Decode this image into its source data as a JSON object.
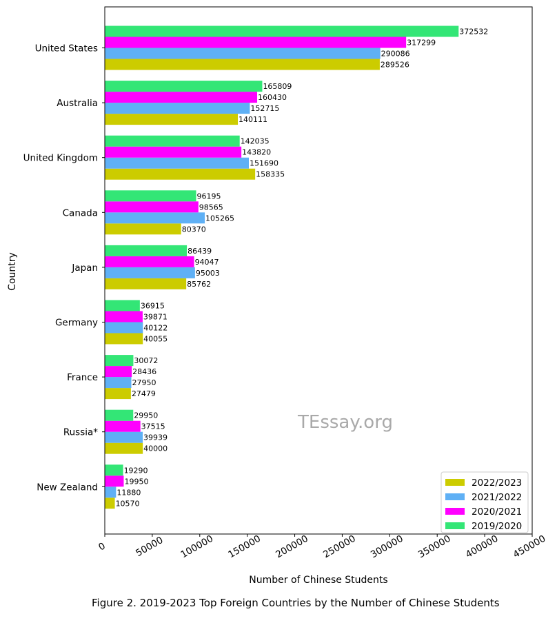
{
  "caption": "Figure 2. 2019-2023 Top Foreign Countries by the Number of Chinese Students",
  "chart_data": {
    "type": "bar",
    "orientation": "horizontal",
    "title": "",
    "xlabel": "Number of Chinese Students",
    "ylabel": "Country",
    "xlim": [
      0,
      450000
    ],
    "xticks": [
      0,
      50000,
      100000,
      150000,
      200000,
      250000,
      300000,
      350000,
      400000,
      450000
    ],
    "categories": [
      "United States",
      "Australia ",
      "United Kingdom",
      "Canada ",
      "Japan ",
      "Germany",
      "France",
      "Russia*",
      "New Zealand"
    ],
    "series": [
      {
        "name": "2022/2023",
        "color": "#cccc00",
        "values": [
          289526,
          140111,
          158335,
          80370,
          85762,
          40055,
          27479,
          40000,
          10570
        ]
      },
      {
        "name": "2021/2022",
        "color": "#5fb0f5",
        "values": [
          290086,
          152715,
          151690,
          105265,
          95003,
          40122,
          27950,
          39939,
          11880
        ]
      },
      {
        "name": "2020/2021",
        "color": "#ff00ff",
        "values": [
          317299,
          160430,
          143820,
          98565,
          94047,
          39871,
          28436,
          37515,
          19950
        ]
      },
      {
        "name": "2019/2020",
        "color": "#33e676",
        "values": [
          372532,
          165809,
          142035,
          96195,
          86439,
          36915,
          30072,
          29950,
          19290
        ]
      }
    ],
    "legend_position": "lower-right",
    "grid": false,
    "watermark": "TEssay.org"
  }
}
